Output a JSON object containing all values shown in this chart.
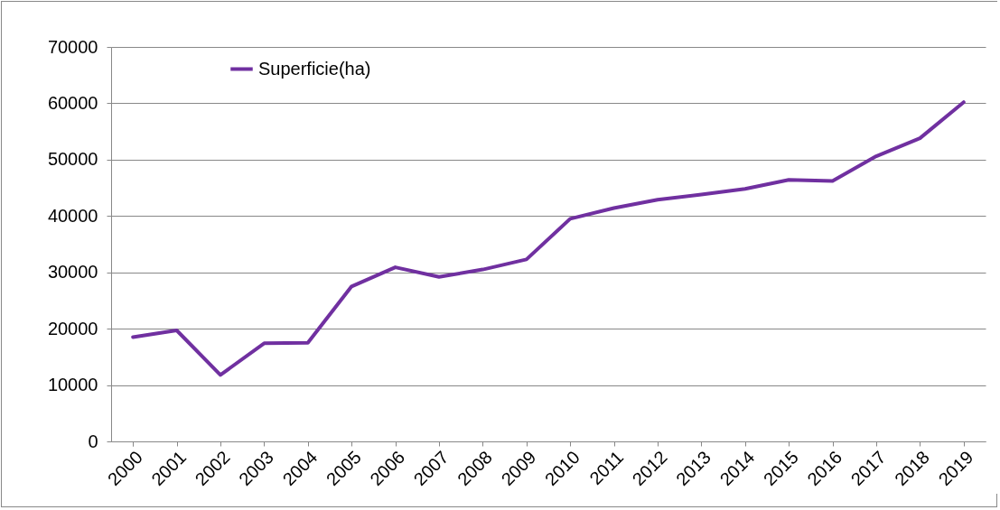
{
  "chart_data": {
    "type": "line",
    "categories": [
      "2000",
      "2001",
      "2002",
      "2003",
      "2004",
      "2005",
      "2006",
      "2007",
      "2008",
      "2009",
      "2010",
      "2011",
      "2012",
      "2013",
      "2014",
      "2015",
      "2016",
      "2017",
      "2018",
      "2019"
    ],
    "series": [
      {
        "name": "Superficie(ha)",
        "color": "#7030a0",
        "values": [
          18500,
          19700,
          11800,
          17400,
          17500,
          27500,
          30900,
          29200,
          30500,
          32300,
          39500,
          41400,
          42900,
          43800,
          44800,
          46400,
          46200,
          50600,
          53800,
          60200
        ]
      }
    ],
    "ylim": [
      0,
      70000
    ],
    "yticks": [
      0,
      10000,
      20000,
      30000,
      40000,
      50000,
      60000,
      70000
    ],
    "grid": "y",
    "legend": "top left",
    "marker": "none",
    "line_style": "solid"
  }
}
